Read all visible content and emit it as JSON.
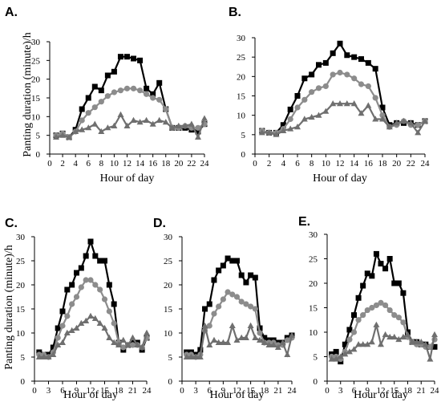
{
  "figure": {
    "ylabel": "Panting duration (minute)/h"
  },
  "colors": {
    "black": "#000000",
    "gray": "#8c8c8c",
    "darkgray": "#6f6f6f"
  },
  "chart_data": [
    {
      "type": "line",
      "label": "A.",
      "xlabel": "Hour of day",
      "xlim": [
        0,
        24
      ],
      "ylim": [
        0,
        30
      ],
      "xticks": [
        0,
        2,
        4,
        6,
        8,
        10,
        12,
        14,
        16,
        18,
        20,
        22,
        24
      ],
      "yticks": [
        0,
        5,
        10,
        15,
        20,
        25,
        30
      ],
      "x": [
        1,
        2,
        3,
        4,
        5,
        6,
        7,
        8,
        9,
        10,
        11,
        12,
        13,
        14,
        15,
        16,
        17,
        18,
        19,
        20,
        21,
        22,
        23,
        24
      ],
      "series": [
        {
          "marker": "square",
          "color": "#000000",
          "values": [
            5,
            5.5,
            4.5,
            6.5,
            12,
            15,
            18,
            17,
            21,
            22,
            26,
            26,
            25.5,
            25,
            17.5,
            16,
            19,
            12,
            7,
            7,
            7,
            6.5,
            6,
            8
          ]
        },
        {
          "marker": "circle",
          "color": "#8c8c8c",
          "values": [
            5,
            5.5,
            4.5,
            6,
            9,
            11,
            12.5,
            14,
            15.5,
            16.5,
            17,
            17.5,
            17.5,
            17,
            16,
            15,
            14.5,
            12,
            7,
            7,
            7.5,
            7,
            7,
            8
          ]
        },
        {
          "marker": "triangle",
          "color": "#6f6f6f",
          "values": [
            4.5,
            5,
            4.5,
            6,
            6.5,
            7,
            8,
            6,
            7,
            7.5,
            10.5,
            7.5,
            9,
            8.5,
            9,
            8,
            9,
            8.5,
            7,
            7.5,
            7.5,
            8,
            4.5,
            9.5
          ]
        }
      ]
    },
    {
      "type": "line",
      "label": "B.",
      "xlabel": "Hour of day",
      "xlim": [
        0,
        24
      ],
      "ylim": [
        0,
        30
      ],
      "xticks": [
        0,
        2,
        4,
        6,
        8,
        10,
        12,
        14,
        16,
        18,
        20,
        22,
        24
      ],
      "yticks": [
        0,
        5,
        10,
        15,
        20,
        25,
        30
      ],
      "x": [
        1,
        2,
        3,
        4,
        5,
        6,
        7,
        8,
        9,
        10,
        11,
        12,
        13,
        14,
        15,
        16,
        17,
        18,
        19,
        20,
        21,
        22,
        23,
        24
      ],
      "series": [
        {
          "marker": "square",
          "color": "#000000",
          "values": [
            6,
            5.5,
            5.5,
            7.5,
            11.5,
            15,
            19.5,
            20.5,
            23,
            23.5,
            26,
            28.5,
            25.5,
            25,
            24.5,
            23.5,
            22,
            12,
            7.5,
            8,
            8,
            8,
            7.5,
            8.5
          ]
        },
        {
          "marker": "circle",
          "color": "#8c8c8c",
          "values": [
            6,
            5.5,
            5.5,
            6.5,
            9,
            12,
            14,
            16,
            17,
            17.5,
            20.5,
            21,
            20.5,
            19.5,
            18,
            17.5,
            14.5,
            10,
            7,
            7.5,
            8.5,
            7.5,
            7.5,
            8.5
          ]
        },
        {
          "marker": "triangle",
          "color": "#6f6f6f",
          "values": [
            5.5,
            5.5,
            5,
            6,
            6.5,
            7,
            9,
            9.5,
            10,
            11,
            13,
            13,
            13,
            13,
            10.5,
            12.5,
            9,
            9,
            7,
            8,
            8.5,
            8,
            5.5,
            8.5
          ]
        }
      ]
    },
    {
      "type": "line",
      "label": "C.",
      "xlabel": "Hour of day",
      "xlim": [
        0,
        24
      ],
      "ylim": [
        0,
        30
      ],
      "xticks": [
        0,
        3,
        6,
        9,
        12,
        15,
        18,
        21,
        24
      ],
      "yticks": [
        0,
        5,
        10,
        15,
        20,
        25,
        30
      ],
      "x": [
        1,
        2,
        3,
        4,
        5,
        6,
        7,
        8,
        9,
        10,
        11,
        12,
        13,
        14,
        15,
        16,
        17,
        18,
        19,
        20,
        21,
        22,
        23,
        24
      ],
      "series": [
        {
          "marker": "square",
          "color": "#000000",
          "values": [
            6,
            5.5,
            5.5,
            7,
            11,
            14.5,
            19,
            20,
            22.5,
            23.5,
            26,
            29,
            26,
            25,
            25,
            20,
            16,
            8,
            6.5,
            7.5,
            8,
            8,
            6.5,
            9
          ]
        },
        {
          "marker": "circle",
          "color": "#8c8c8c",
          "values": [
            5.5,
            5.5,
            5,
            6,
            9,
            11.5,
            13.5,
            16,
            17.5,
            19.5,
            21,
            21,
            20,
            19,
            17,
            14.5,
            12,
            8,
            7,
            7.5,
            7.5,
            7.5,
            7,
            9
          ]
        },
        {
          "marker": "triangle",
          "color": "#6f6f6f",
          "values": [
            5,
            5,
            5,
            5.5,
            7.5,
            8,
            10,
            10.5,
            11,
            12,
            12.5,
            13.5,
            13,
            12,
            11,
            9,
            8,
            7.5,
            8.5,
            7.5,
            9,
            7.5,
            7,
            10
          ]
        }
      ]
    },
    {
      "type": "line",
      "label": "D.",
      "xlabel": "Hour of day",
      "xlim": [
        0,
        24
      ],
      "ylim": [
        0,
        30
      ],
      "xticks": [
        0,
        3,
        6,
        9,
        12,
        15,
        18,
        21,
        24
      ],
      "yticks": [
        0,
        5,
        10,
        15,
        20,
        25,
        30
      ],
      "x": [
        1,
        2,
        3,
        4,
        5,
        6,
        7,
        8,
        9,
        10,
        11,
        12,
        13,
        14,
        15,
        16,
        17,
        18,
        19,
        20,
        21,
        22,
        23,
        24
      ],
      "series": [
        {
          "marker": "square",
          "color": "#000000",
          "values": [
            6,
            6,
            5.5,
            6.5,
            15,
            16,
            21,
            23,
            24,
            25.5,
            25,
            25,
            22,
            20.5,
            22,
            21.5,
            11,
            9,
            8.5,
            8.5,
            8,
            8,
            9,
            9.5
          ]
        },
        {
          "marker": "circle",
          "color": "#8c8c8c",
          "values": [
            5.5,
            5.5,
            5,
            5.5,
            10.5,
            11.5,
            14,
            15.5,
            17,
            18.5,
            18,
            17.5,
            16.5,
            16,
            15.5,
            15,
            10,
            8,
            8,
            8,
            7.5,
            7.5,
            8.5,
            9
          ]
        },
        {
          "marker": "triangle",
          "color": "#6f6f6f",
          "values": [
            5,
            5,
            5,
            5,
            11.5,
            7.5,
            8.5,
            8,
            8,
            8,
            11.5,
            8.5,
            9,
            9,
            11.5,
            9,
            8.5,
            8,
            7.5,
            7.5,
            7,
            8,
            5.5,
            9.5
          ]
        }
      ]
    },
    {
      "type": "line",
      "label": "E.",
      "xlabel": "Hour of day",
      "xlim": [
        0,
        24
      ],
      "ylim": [
        0,
        30
      ],
      "xticks": [
        0,
        3,
        6,
        9,
        12,
        15,
        18,
        21,
        24
      ],
      "yticks": [
        0,
        5,
        10,
        15,
        20,
        25,
        30
      ],
      "x": [
        1,
        2,
        3,
        4,
        5,
        6,
        7,
        8,
        9,
        10,
        11,
        12,
        13,
        14,
        15,
        16,
        17,
        18,
        19,
        20,
        21,
        22,
        23,
        24
      ],
      "series": [
        {
          "marker": "square",
          "color": "#000000",
          "values": [
            5.5,
            6,
            4,
            7.5,
            10.5,
            13.5,
            17,
            19.5,
            22,
            21.5,
            26,
            24,
            23,
            25,
            20,
            20,
            18,
            10,
            8,
            8,
            7.5,
            7.5,
            7,
            7
          ]
        },
        {
          "marker": "circle",
          "color": "#8c8c8c",
          "values": [
            5,
            5,
            4.5,
            6,
            8.5,
            10,
            12.5,
            13.5,
            14.5,
            15,
            15.5,
            16,
            15.5,
            14.5,
            13.5,
            13,
            12,
            9,
            8,
            7.5,
            7.5,
            7,
            7,
            8.5
          ]
        },
        {
          "marker": "triangle",
          "color": "#6f6f6f",
          "values": [
            4.5,
            4.5,
            5,
            5.5,
            6,
            6.5,
            7.5,
            7.5,
            7.5,
            8,
            11.5,
            7.5,
            9.5,
            9,
            9,
            8.5,
            9,
            9.5,
            8,
            8,
            8,
            7.5,
            4.5,
            9.5
          ]
        }
      ]
    }
  ]
}
